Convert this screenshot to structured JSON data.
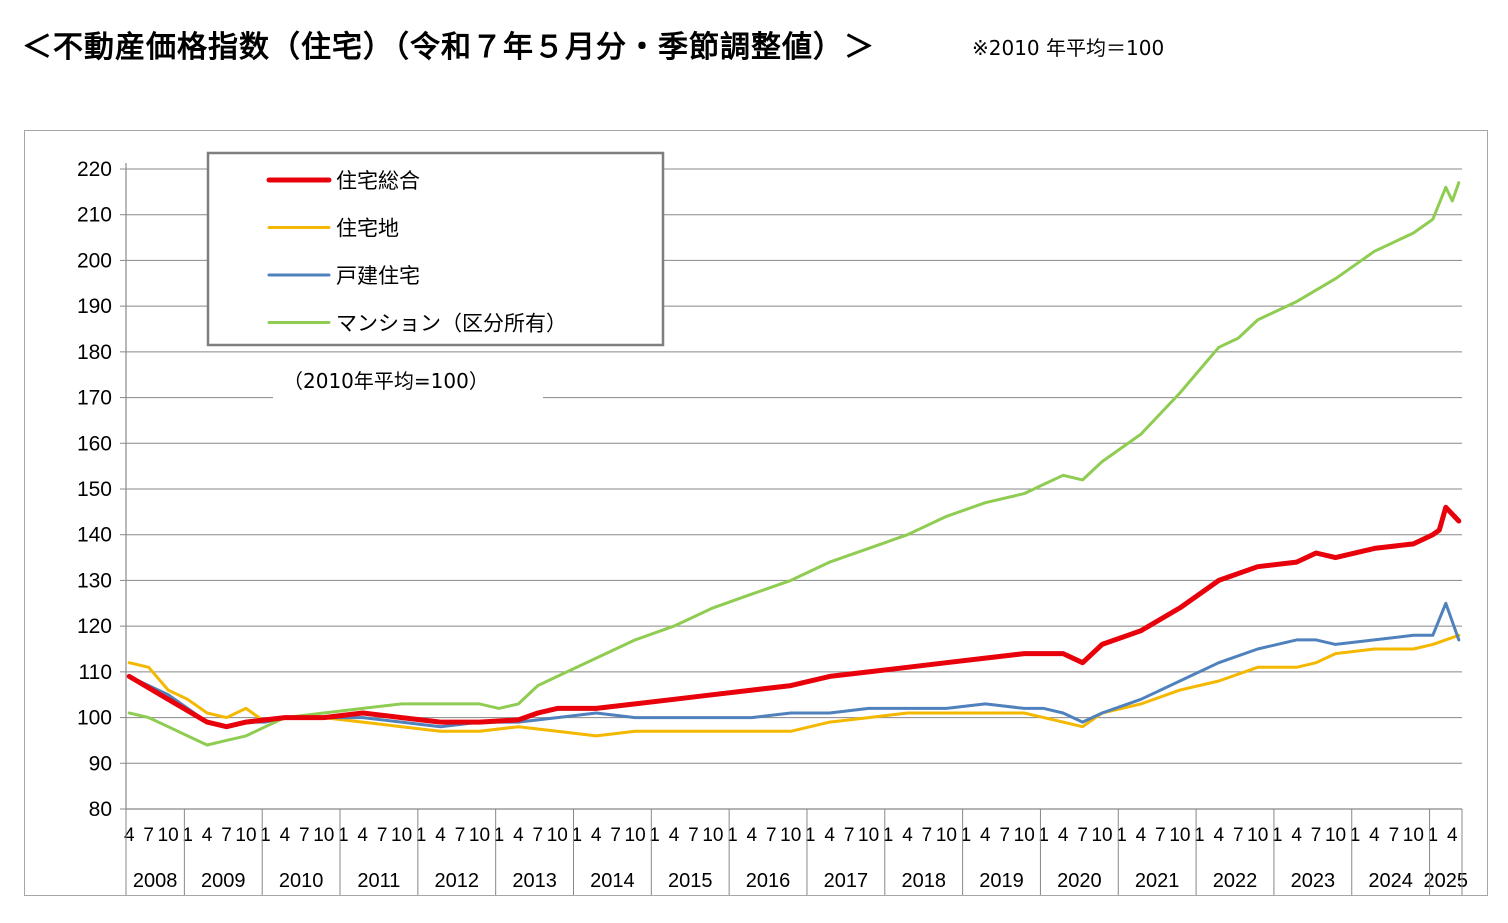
{
  "title": "＜不動産価格指数（住宅）（令和７年５月分・季節調整値）＞",
  "note": "※2010 年平均＝100",
  "chart_data": {
    "type": "line",
    "inner_note": "（2010年平均=100）",
    "ylim": [
      80,
      220
    ],
    "yticks": [
      80,
      90,
      100,
      110,
      120,
      130,
      140,
      150,
      160,
      170,
      180,
      190,
      200,
      210,
      220
    ],
    "month_tick_labels": [
      "1",
      "4",
      "7",
      "10"
    ],
    "years": [
      "2008",
      "2009",
      "2010",
      "2011",
      "2012",
      "2013",
      "2014",
      "2015",
      "2016",
      "2017",
      "2018",
      "2019",
      "2020",
      "2021",
      "2022",
      "2023",
      "2024",
      "2025"
    ],
    "x_start": "2008-04",
    "x_end": "2025-05",
    "grid": true,
    "legend_position": "top-left",
    "series": [
      {
        "name": "住宅総合",
        "color": "#e8000b",
        "x": [
          "2008-04",
          "2008-10",
          "2009-04",
          "2009-07",
          "2009-10",
          "2010-04",
          "2010-10",
          "2011-04",
          "2011-10",
          "2012-04",
          "2012-10",
          "2013-04",
          "2013-07",
          "2013-10",
          "2014-04",
          "2014-10",
          "2015-04",
          "2015-10",
          "2016-04",
          "2016-10",
          "2017-04",
          "2017-10",
          "2018-04",
          "2018-10",
          "2019-04",
          "2019-10",
          "2020-01",
          "2020-04",
          "2020-07",
          "2020-10",
          "2021-04",
          "2021-10",
          "2022-04",
          "2022-10",
          "2023-04",
          "2023-07",
          "2023-10",
          "2024-04",
          "2024-10",
          "2025-01",
          "2025-02",
          "2025-03",
          "2025-05"
        ],
        "values": [
          109,
          104,
          99,
          98,
          99,
          100,
          100,
          101,
          100,
          99,
          99,
          99.5,
          101,
          102,
          102,
          103,
          104,
          105,
          106,
          107,
          109,
          110,
          111,
          112,
          113,
          114,
          114,
          114,
          112,
          116,
          119,
          124,
          130,
          133,
          134,
          136,
          135,
          137,
          138,
          140,
          141,
          146,
          143
        ]
      },
      {
        "name": "住宅地",
        "color": "#f5b800",
        "x": [
          "2008-04",
          "2008-07",
          "2008-10",
          "2009-01",
          "2009-04",
          "2009-07",
          "2009-10",
          "2010-01",
          "2010-04",
          "2010-10",
          "2011-04",
          "2011-10",
          "2012-04",
          "2012-10",
          "2013-04",
          "2013-10",
          "2014-04",
          "2014-10",
          "2015-04",
          "2015-10",
          "2016-04",
          "2016-10",
          "2017-04",
          "2017-10",
          "2018-04",
          "2018-10",
          "2019-04",
          "2019-10",
          "2020-01",
          "2020-04",
          "2020-07",
          "2020-10",
          "2021-04",
          "2021-10",
          "2022-04",
          "2022-10",
          "2023-04",
          "2023-07",
          "2023-10",
          "2024-04",
          "2024-10",
          "2025-01",
          "2025-05"
        ],
        "values": [
          112,
          111,
          106,
          104,
          101,
          100,
          102,
          99,
          100,
          100,
          99,
          98,
          97,
          97,
          98,
          97,
          96,
          97,
          97,
          97,
          97,
          97,
          99,
          100,
          101,
          101,
          101,
          101,
          100,
          99,
          98,
          101,
          103,
          106,
          108,
          111,
          111,
          112,
          114,
          115,
          115,
          116,
          118
        ]
      },
      {
        "name": "戸建住宅",
        "color": "#4f81bd",
        "x": [
          "2008-04",
          "2008-07",
          "2008-10",
          "2009-01",
          "2009-04",
          "2009-07",
          "2009-10",
          "2010-01",
          "2010-04",
          "2010-10",
          "2011-04",
          "2011-10",
          "2012-04",
          "2012-10",
          "2013-04",
          "2013-10",
          "2014-04",
          "2014-10",
          "2015-04",
          "2015-10",
          "2016-04",
          "2016-10",
          "2017-04",
          "2017-10",
          "2018-04",
          "2018-10",
          "2019-04",
          "2019-10",
          "2020-01",
          "2020-04",
          "2020-07",
          "2020-10",
          "2021-04",
          "2021-10",
          "2022-04",
          "2022-10",
          "2023-04",
          "2023-07",
          "2023-10",
          "2024-04",
          "2024-10",
          "2025-01",
          "2025-03",
          "2025-05"
        ],
        "values": [
          109,
          107,
          105,
          102,
          99,
          98,
          99,
          99,
          100,
          100,
          100,
          99,
          98,
          99,
          99,
          100,
          101,
          100,
          100,
          100,
          100,
          101,
          101,
          102,
          102,
          102,
          103,
          102,
          102,
          101,
          99,
          101,
          104,
          108,
          112,
          115,
          117,
          117,
          116,
          117,
          118,
          118,
          125,
          117
        ]
      },
      {
        "name": "マンション（区分所有）",
        "color": "#8fcc52",
        "x": [
          "2008-04",
          "2008-07",
          "2008-10",
          "2009-01",
          "2009-04",
          "2009-07",
          "2009-10",
          "2010-01",
          "2010-04",
          "2010-10",
          "2011-04",
          "2011-10",
          "2012-04",
          "2012-10",
          "2013-01",
          "2013-04",
          "2013-07",
          "2013-10",
          "2014-04",
          "2014-10",
          "2015-04",
          "2015-10",
          "2016-04",
          "2016-10",
          "2017-04",
          "2017-10",
          "2018-04",
          "2018-10",
          "2019-04",
          "2019-10",
          "2020-01",
          "2020-04",
          "2020-07",
          "2020-10",
          "2021-04",
          "2021-10",
          "2022-01",
          "2022-04",
          "2022-07",
          "2022-10",
          "2023-04",
          "2023-10",
          "2024-04",
          "2024-10",
          "2025-01",
          "2025-03",
          "2025-04",
          "2025-05"
        ],
        "values": [
          101,
          100,
          98,
          96,
          94,
          95,
          96,
          98,
          100,
          101,
          102,
          103,
          103,
          103,
          102,
          103,
          107,
          109,
          113,
          117,
          120,
          124,
          127,
          130,
          134,
          137,
          140,
          144,
          147,
          149,
          151,
          153,
          152,
          156,
          162,
          171,
          176,
          181,
          183,
          187,
          191,
          196,
          202,
          206,
          209,
          216,
          213,
          217
        ]
      }
    ]
  }
}
